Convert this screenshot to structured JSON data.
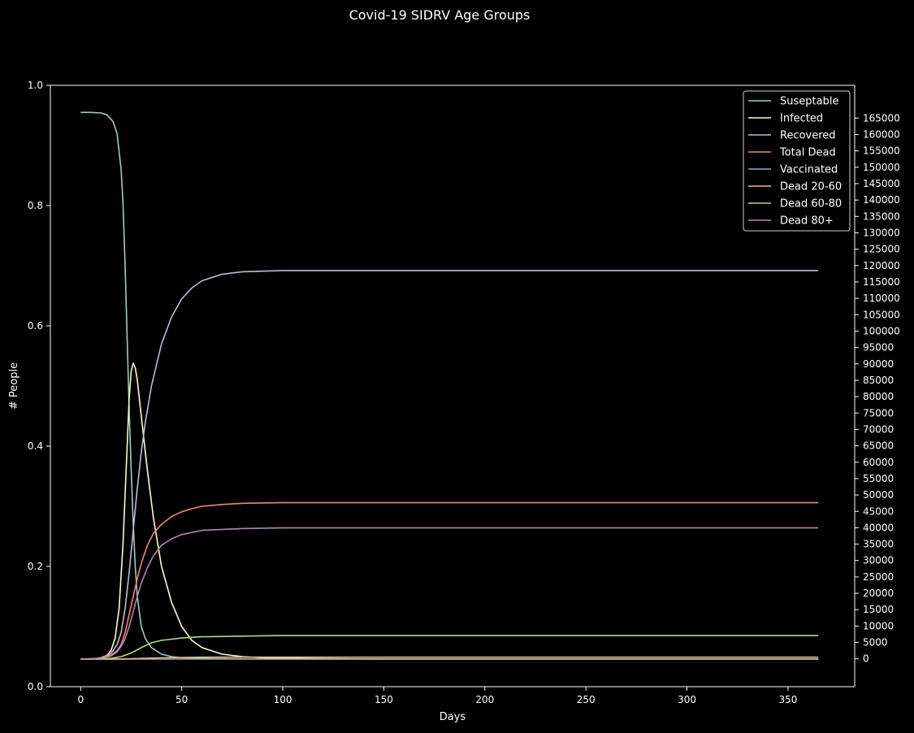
{
  "chart_data": {
    "type": "line",
    "title": "Covid-19 SIDRV Age Groups",
    "xlabel": "Days",
    "ylabel": "# People",
    "xlim": [
      -15,
      383
    ],
    "ylim": [
      0,
      1
    ],
    "x_ticks": [
      0,
      50,
      100,
      150,
      200,
      250,
      300,
      350
    ],
    "y_ticks": [
      0.0,
      0.2,
      0.4,
      0.6,
      0.8,
      1.0
    ],
    "y_tick_labels": [
      "0.0",
      "0.2",
      "0.4",
      "0.6",
      "0.8",
      "1.0"
    ],
    "y2_lim": [
      -8500,
      175000
    ],
    "y2_ticks": [
      0,
      5000,
      10000,
      15000,
      20000,
      25000,
      30000,
      35000,
      40000,
      45000,
      50000,
      55000,
      60000,
      65000,
      70000,
      75000,
      80000,
      85000,
      90000,
      95000,
      100000,
      105000,
      110000,
      115000,
      120000,
      125000,
      130000,
      135000,
      140000,
      145000,
      150000,
      155000,
      160000,
      165000
    ],
    "legend_position": "top-right",
    "grid": false,
    "series": [
      {
        "name": "Suseptable",
        "color": "#8dd3c7",
        "x": [
          0,
          5,
          10,
          13,
          16,
          18,
          20,
          21,
          22,
          23,
          24,
          25,
          26,
          27,
          28,
          30,
          32,
          35,
          40,
          45,
          50,
          60,
          80,
          100,
          150,
          200,
          250,
          300,
          365
        ],
        "y": [
          0.955,
          0.955,
          0.954,
          0.951,
          0.94,
          0.92,
          0.86,
          0.8,
          0.7,
          0.58,
          0.46,
          0.36,
          0.27,
          0.2,
          0.15,
          0.1,
          0.08,
          0.065,
          0.054,
          0.05,
          0.048,
          0.047,
          0.046,
          0.046,
          0.046,
          0.046,
          0.046,
          0.046,
          0.046
        ]
      },
      {
        "name": "Infected",
        "color": "#ffffb3",
        "x": [
          0,
          5,
          10,
          13,
          15,
          17,
          19,
          21,
          23,
          24,
          25,
          26,
          27,
          28,
          30,
          33,
          36,
          40,
          45,
          50,
          55,
          60,
          70,
          80,
          90,
          100,
          150,
          200,
          250,
          300,
          365
        ],
        "y": [
          0.046,
          0.046,
          0.048,
          0.052,
          0.06,
          0.08,
          0.13,
          0.24,
          0.4,
          0.48,
          0.525,
          0.538,
          0.53,
          0.51,
          0.45,
          0.36,
          0.28,
          0.2,
          0.14,
          0.1,
          0.077,
          0.065,
          0.054,
          0.05,
          0.048,
          0.047,
          0.046,
          0.046,
          0.046,
          0.046,
          0.046
        ]
      },
      {
        "name": "Recovered",
        "color": "#bebada",
        "x": [
          0,
          10,
          15,
          18,
          20,
          22,
          24,
          26,
          28,
          30,
          32,
          35,
          40,
          45,
          50,
          55,
          60,
          70,
          80,
          90,
          100,
          150,
          200,
          250,
          300,
          365
        ],
        "y": [
          0.046,
          0.047,
          0.055,
          0.07,
          0.09,
          0.13,
          0.19,
          0.26,
          0.33,
          0.39,
          0.44,
          0.5,
          0.57,
          0.615,
          0.645,
          0.663,
          0.675,
          0.686,
          0.69,
          0.691,
          0.692,
          0.692,
          0.692,
          0.692,
          0.692,
          0.692
        ]
      },
      {
        "name": "Total Dead",
        "color": "#fb8072",
        "x": [
          0,
          10,
          15,
          18,
          20,
          22,
          24,
          26,
          28,
          30,
          33,
          36,
          40,
          45,
          50,
          55,
          60,
          70,
          80,
          100,
          150,
          200,
          250,
          300,
          365
        ],
        "y": [
          0.046,
          0.047,
          0.052,
          0.06,
          0.07,
          0.09,
          0.12,
          0.15,
          0.18,
          0.205,
          0.235,
          0.255,
          0.27,
          0.283,
          0.291,
          0.296,
          0.3,
          0.303,
          0.305,
          0.306,
          0.306,
          0.306,
          0.306,
          0.306,
          0.306
        ]
      },
      {
        "name": "Vaccinated",
        "color": "#80b1d3",
        "x": [
          0,
          50,
          100,
          150,
          200,
          250,
          300,
          365
        ],
        "y": [
          0.046,
          0.046,
          0.046,
          0.046,
          0.046,
          0.046,
          0.046,
          0.046
        ]
      },
      {
        "name": "Dead 20-60",
        "color": "#fdb462",
        "x": [
          0,
          20,
          30,
          40,
          60,
          100,
          150,
          200,
          250,
          300,
          365
        ],
        "y": [
          0.046,
          0.046,
          0.047,
          0.048,
          0.049,
          0.049,
          0.049,
          0.049,
          0.049,
          0.049,
          0.049
        ]
      },
      {
        "name": "Dead 60-80",
        "color": "#b3de69",
        "x": [
          0,
          10,
          15,
          20,
          25,
          30,
          35,
          40,
          50,
          60,
          80,
          100,
          150,
          200,
          250,
          300,
          365
        ],
        "y": [
          0.046,
          0.046,
          0.047,
          0.05,
          0.056,
          0.065,
          0.073,
          0.077,
          0.081,
          0.083,
          0.084,
          0.085,
          0.085,
          0.085,
          0.085,
          0.085,
          0.085
        ]
      },
      {
        "name": "Dead 80+",
        "color": "#bc80bd",
        "x": [
          0,
          10,
          15,
          18,
          20,
          22,
          24,
          26,
          28,
          30,
          33,
          36,
          40,
          45,
          50,
          60,
          80,
          100,
          150,
          200,
          250,
          300,
          365
        ],
        "y": [
          0.046,
          0.047,
          0.051,
          0.058,
          0.067,
          0.08,
          0.1,
          0.125,
          0.15,
          0.172,
          0.198,
          0.218,
          0.235,
          0.246,
          0.253,
          0.26,
          0.263,
          0.264,
          0.264,
          0.264,
          0.264,
          0.264,
          0.264
        ]
      }
    ]
  }
}
